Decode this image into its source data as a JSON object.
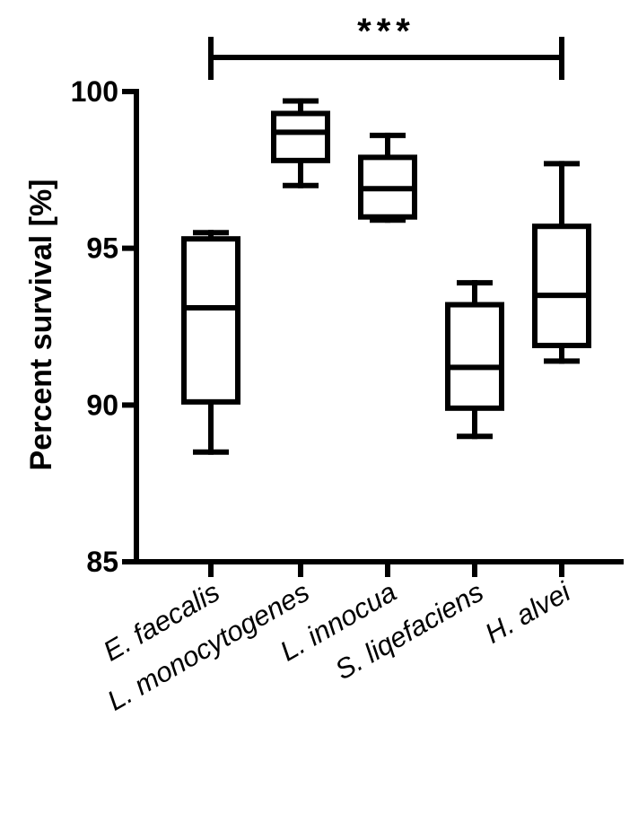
{
  "chart_data": {
    "type": "box",
    "ylabel": "Percent survival [%]",
    "xlabel": "",
    "ylim": [
      85,
      100
    ],
    "yticks": [
      85,
      90,
      95,
      100
    ],
    "grid": false,
    "categories": [
      "E. faecalis",
      "L. monocytogenes",
      "L. innocua",
      "S. liqefaciens",
      "H. alvei"
    ],
    "boxes": [
      {
        "category": "E. faecalis",
        "min": 88.5,
        "q1": 90.1,
        "median": 93.1,
        "q3": 95.3,
        "max": 95.5
      },
      {
        "category": "L. monocytogenes",
        "min": 97.0,
        "q1": 97.8,
        "median": 98.7,
        "q3": 99.3,
        "max": 99.7
      },
      {
        "category": "L. innocua",
        "min": 95.9,
        "q1": 96.0,
        "median": 96.9,
        "q3": 97.9,
        "max": 98.6
      },
      {
        "category": "S. liqefaciens",
        "min": 89.0,
        "q1": 89.9,
        "median": 91.2,
        "q3": 93.2,
        "max": 93.9
      },
      {
        "category": "H. alvei",
        "min": 91.4,
        "q1": 91.9,
        "median": 93.5,
        "q3": 95.7,
        "max": 97.7
      }
    ],
    "significance": {
      "label": "***",
      "from": "E. faecalis",
      "to": "H. alvei"
    }
  }
}
